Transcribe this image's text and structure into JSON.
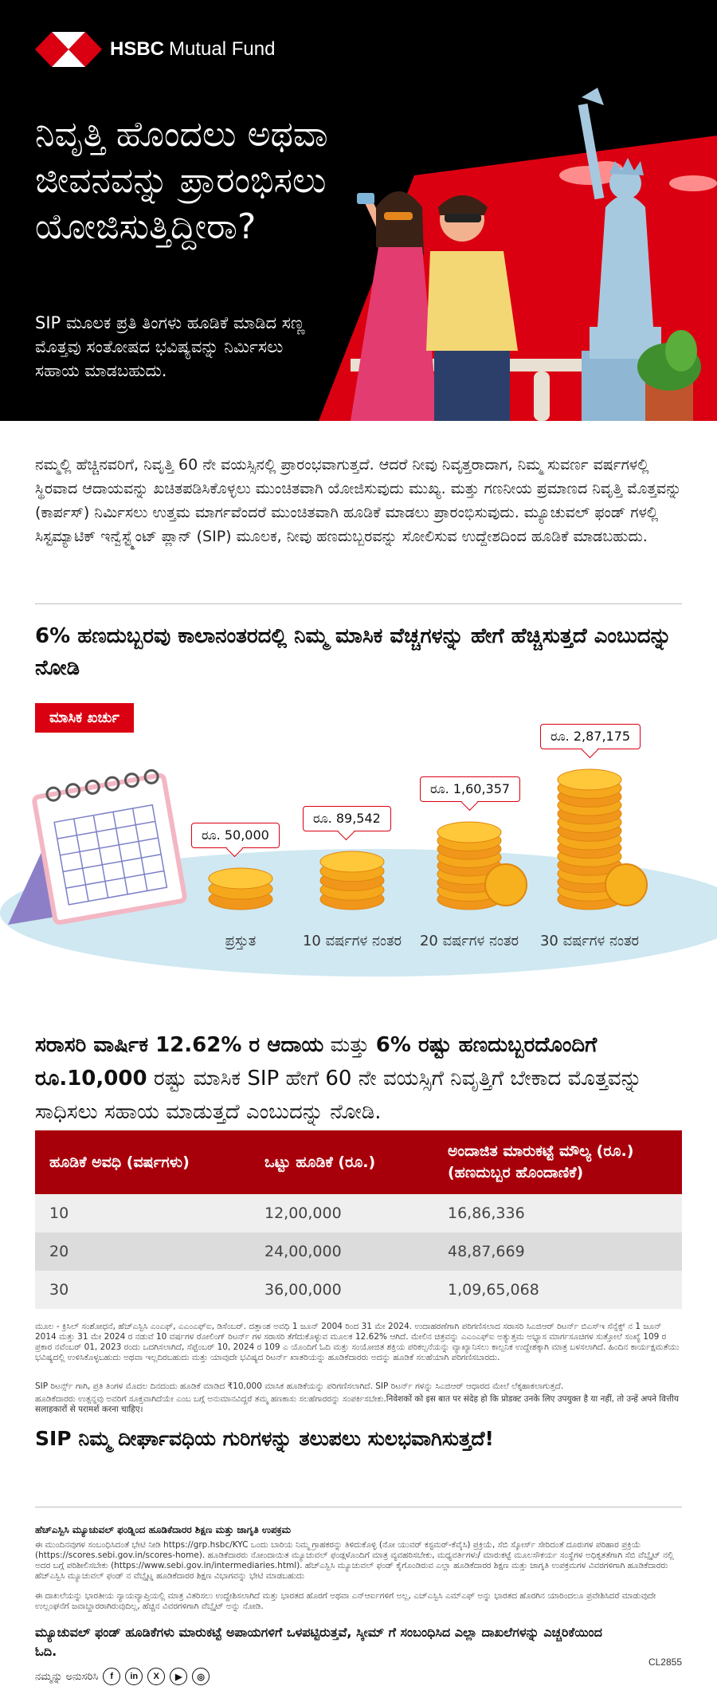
{
  "brand": {
    "name_bold": "HSBC",
    "name_rest": "Mutual Fund"
  },
  "colors": {
    "brand_red": "#db0011",
    "dark_red": "#a8000b",
    "hero_bg": "#000000"
  },
  "hero": {
    "title": "ನಿವೃತ್ತಿ ಹೊಂದಲು ಅಥವಾ ಜೀವನವನ್ನು ಪ್ರಾರಂಭಿಸಲು ಯೋಜಿಸುತ್ತಿದ್ದೀರಾ?",
    "subtitle": "SIP ಮೂಲಕ ಪ್ರತಿ ತಿಂಗಳು ಹೂಡಿಕೆ ಮಾಡಿದ ಸಣ್ಣ ಮೊತ್ತವು ಸಂತೋಷದ ಭವಿಷ್ಯವನ್ನು ನಿರ್ಮಿಸಲು ಸಹಾಯ ಮಾಡಬಹುದು."
  },
  "intro": "ನಮ್ಮಲ್ಲಿ ಹೆಚ್ಚಿನವರಿಗೆ, ನಿವೃತ್ತಿ 60 ನೇ ವಯಸ್ಸಿನಲ್ಲಿ ಪ್ರಾರಂಭವಾಗುತ್ತದೆ. ಆದರೆ ನೀವು ನಿವೃತ್ತರಾದಾಗ, ನಿಮ್ಮ ಸುವರ್ಣ ವರ್ಷಗಳಲ್ಲಿ ಸ್ಥಿರವಾದ ಆದಾಯವನ್ನು ಖಚಿತಪಡಿಸಿಕೊಳ್ಳಲು ಮುಂಚಿತವಾಗಿ ಯೋಜಿಸುವುದು ಮುಖ್ಯ. ಮತ್ತು ಗಣನೀಯ ಪ್ರಮಾಣದ ನಿವೃತ್ತಿ ಮೊತ್ತವನ್ನು (ಕಾರ್ಪಸ್) ನಿರ್ಮಿಸಲು ಉತ್ತಮ ಮಾರ್ಗವೆಂದರೆ ಮುಂಚಿತವಾಗಿ ಹೂಡಿಕೆ ಮಾಡಲು ಪ್ರಾರಂಭಿಸುವುದು. ಮ್ಯೂಚುವಲ್ ಫಂಡ್ ಗಳಲ್ಲಿ ಸಿಸ್ಟಮ್ಯಾಟಿಕ್ ಇನ್ವೆಸ್ಟ್ಮೆಂಟ್ ಪ್ಲಾನ್ (SIP) ಮೂಲಕ, ನೀವು ಹಣದುಬ್ಬರವನ್ನು ಸೋಲಿಸುವ ಉದ್ದೇಶದಿಂದ ಹೂಡಿಕೆ ಮಾಡಬಹುದು.",
  "inflation": {
    "title": "6% ಹಣದುಬ್ಬರವು ಕಾಲಾನಂತರದಲ್ಲಿ ನಿಮ್ಮ ಮಾಸಿಕ ವೆಚ್ಚಗಳನ್ನು ಹೇಗೆ ಹೆಚ್ಚಿಸುತ್ತದೆ ಎಂಬುದನ್ನು ನೋಡಿ",
    "badge": "ಮಾಸಿಕ ಖರ್ಚು"
  },
  "chart_data": {
    "type": "bar",
    "categories": [
      "ಪ್ರಸ್ತುತ",
      "10 ವರ್ಷಗಳ ನಂತರ",
      "20 ವರ್ಷಗಳ ನಂತರ",
      "30 ವರ್ಷಗಳ ನಂತರ"
    ],
    "values": [
      50000,
      89542,
      160357,
      287175
    ],
    "value_labels": [
      "ರೂ. 50,000",
      "ರೂ. 89,542",
      "ರೂ. 1,60,357",
      "ರೂ. 2,87,175"
    ],
    "series": [
      {
        "values": [
          50000,
          89542,
          160357,
          287175
        ]
      }
    ]
  },
  "lead": {
    "part1": "ಸರಾಸರಿ ವಾರ್ಷಿಕ 12.62% ರ ಆದಾಯ",
    "part2": " ಮತ್ತು ",
    "part3": "6% ರಷ್ಟು ಹಣದುಬ್ಬರದೊಂದಿಗೆ ರೂ.10,000",
    "part4": " ರಷ್ಟು ಮಾಸಿಕ SIP ಹೇಗೆ 60 ನೇ ವಯಸ್ಸಿಗೆ ನಿವೃತ್ತಿಗೆ ಬೇಕಾದ ಮೊತ್ತವನ್ನು ಸಾಧಿಸಲು ಸಹಾಯ ಮಾಡುತ್ತದೆ ಎಂಬುದನ್ನು ನೋಡಿ."
  },
  "table": {
    "headers": [
      "ಹೂಡಿಕೆ ಅವಧಿ (ವರ್ಷಗಳು)",
      "ಒಟ್ಟು ಹೂಡಿಕೆ (ರೂ.)",
      "ಅಂದಾಜಿತ ಮಾರುಕಟ್ಟೆ ಮೌಲ್ಯ (ರೂ.) (ಹಣದುಬ್ಬರ ಹೊಂದಾಣಿಕೆ)"
    ],
    "rows": [
      [
        "10",
        "12,00,000",
        "16,86,336"
      ],
      [
        "20",
        "24,00,000",
        "48,87,669"
      ],
      [
        "30",
        "36,00,000",
        "1,09,65,068"
      ]
    ]
  },
  "notes": {
    "source": "ಮೂಲ - ಕ್ರಿಸಿಲ್ ಸಂಶೋಧನೆ, ಹೆಚ್ಎಸ್ಬಿಸಿ ಎಂಎಫ್, ಎಎಂಎಫ್ಐ, ಡಿಸೆಂಬರ್. ದತ್ತಾಂಶ ಅವಧಿ 1 ಜೂನ್ 2004 ರಿಂದ 31 ಮೇ 2024. ಉದಾಹರಣೆಗಾಗಿ ಪರಿಗಣಿಸಲಾದ ಸರಾಸರಿ ಸಿಎಜಿಆರ್ ರಿಟರ್ನ್ ಬಿಎಸ್ಇ ಸೆನ್ಸೆಕ್ಸ್ ನ 1 ಜೂನ್ 2014 ಮತ್ತು 31 ಮೇ 2024 ರ ನಡುವೆ 10 ವರ್ಷಗಳ ರೋಲಿಂಗ್ ರಿಟರ್ನ್ ಗಳ ಸರಾಸರಿ ತೆಗೆದುಕೊಳ್ಳುವ ಮೂಲಕ 12.62% ಆಗಿದೆ. ಮೇಲಿನ ಚಿತ್ರವನ್ನು ಎಎಂಎಫ್ಐ ಅತ್ಯುತ್ತಮ ಅಭ್ಯಾಸ ಮಾರ್ಗಸೂಚಿಗಳ ಸುತ್ತೋಲೆ ಸಂಖ್ಯೆ 109 ರ ಪ್ರಕಾರ ನವೆಂಬರ್ 01, 2023 ರಂದು ಒದಗಿಸಲಾಗಿದೆ, ಸೆಪ್ಟೆಂಬರ್ 10, 2024 ರ 109 ಎ ಯೊಂದಿಗೆ ಓದಿ ಮತ್ತು ಸಂಯೋಜಿತ ಶಕ್ತಿಯ ಪರಿಕಲ್ಪನೆಯನ್ನು ವ್ಯಾಖ್ಯಾನಿಸಲು ಕಾಲ್ಪನಿಕ ಉದ್ದೇಶಕ್ಕಾಗಿ ಮಾತ್ರ ಬಳಸಲಾಗಿದೆ. ಹಿಂದಿನ ಕಾರ್ಯಕ್ಷಮತೆಯು ಭವಿಷ್ಯದಲ್ಲಿ ಉಳಿಸಿಕೊಳ್ಳಬಹುದು ಅಥವಾ ಇಲ್ಲದಿರಬಹುದು ಮತ್ತು ಯಾವುದೇ ಭವಿಷ್ಯದ ರಿಟರ್ನ್ ಖಾತರಿಯನ್ನು ಹೂಡಿಕೆದಾರರು ಅದನ್ನು ಹೂಡಿಕೆ ಸಲಹೆಯಾಗಿ ಪರಿಗಣಿಸಬಾರದು.",
    "sip": "SIP ರಿಟರ್ನ್ಸ್ ಗಾಗಿ, ಪ್ರತಿ ತಿಂಗಳ ಮೊದಲ ದಿನದಂದು ಹೂಡಿಕೆ ಮಾಡಿದ ₹10,000 ಮಾಸಿಕ ಹೂಡಿಕೆಯನ್ನು ಪರಿಗಣಿಸಲಾಗಿದೆ. SIP ರಿಟರ್ನ್ ಗಳನ್ನು ಸಿಎಜಿಆರ್ ಆಧಾರದ ಮೇಲೆ ಲೆಕ್ಕಹಾಕಲಾಗುತ್ತದೆ.",
    "advice": "ಹೂಡಿಕೆದಾರರು ಉತ್ಪನ್ನವು ಅವರಿಗೆ ಸೂಕ್ತವಾಗಿದೆಯೇ ಎಂಬ ಬಗ್ಗೆ ಅನುಮಾನವಿದ್ದರೆ ತಮ್ಮ ಹಣಕಾಸು ಸಲಹೆಗಾರರನ್ನು ಸಂಪರ್ಕಿಸಬೇಕು.निवेशकों को इस बात पर संदेह हो कि प्रोडक्ट उनके लिए उपयुक्त है या नहीं, तो उन्हें अपने वित्तीय सलाहकारों से परामर्श करना चाहिए।"
  },
  "tagline": "SIP ನಿಮ್ಮ ದೀರ್ಘಾವಧಿಯ ಗುರಿಗಳನ್ನು ತಲುಪಲು ಸುಲಭವಾಗಿಸುತ್ತದೆ!",
  "footer": {
    "title": "ಹೆಚ್ಎಸ್ಬಿಸಿ ಮ್ಯೂಚುವಲ್ ಫಂಡ್ನಿಂದ ಹೂಡಿಕೆದಾರರ ಶಿಕ್ಷಣ ಮತ್ತು ಜಾಗೃತಿ ಉಪಕ್ರಮ",
    "p1": "ಈ ಮುಂದಿನವುಗಳ ಸಂಬಂಧಿಸಿದಂತೆ ಭೇಟಿ ನೀಡಿ https://grp.hsbc/KYC ಒಂದು ಬಾರಿಯ ನಿಮ್ಮ ಗ್ರಾಹಕರನ್ನು ತಿಳಿದುಕೊಳ್ಳಿ (ನೋ ಯುವರ್ ಕಸ್ಟಮರ್-ಕೆವೈಸಿ) ಪ್ರಕ್ರಿಯೆ, ಸೆಬಿ ಸ್ಕೋರ್ಸ್ ಸೇರಿದಂತೆ ದೂರುಗಳ ಪರಿಹಾರ ಪ್ರಕ್ರಿಯೆ (https://scores.sebi.gov.in/scores-home). ಹೂಡಿಕೆದಾರರು ನೋಂದಾಯಿತ ಮ್ಯೂಚುವಲ್ ಫಂಡ್ಗಳೊಂದಿಗೆ ಮಾತ್ರ ವ್ಯವಹರಿಸಬೇಕು, ಮಧ್ಯವರ್ತಿಗಳು/ ಮಾರುಕಟ್ಟೆ ಮೂಲಸೌಕರ್ಯ ಸಂಸ್ಥೆಗಳ ಅಧಿಕೃತತೆಗಾಗಿ ಸೆಬಿ ವೆಬ್ಸೈಟ್ ನಲ್ಲಿ ಅದರ ಬಗ್ಗೆ ಪರಿಶೀಲಿಸಬೇಕು (https://www.sebi.gov.in/intermediaries.html). ಹೆಚ್ಎಸ್ಬಿಸಿ ಮ್ಯೂಚುವಲ್ ಫಂಡ್ ಕೈಗೊಂಡಿರುವ ಎಲ್ಲಾ ಹೂಡಿಕೆದಾರರ ಶಿಕ್ಷಣ ಮತ್ತು ಜಾಗೃತಿ ಉಪಕ್ರಮಗಳ ವಿವರಗಳಿಗಾಗಿ ಹೂಡಿಕೆದಾರರು ಹೆಚ್ಎಸ್ಬಿಸಿ ಮ್ಯೂಚುವಲ್ ಫಂಡ್ ನ ವೆಬ್ಸೈಟ್ನ ಹೂಡಿಕೆದಾರರ ಶಿಕ್ಷಣ ವಿಭಾಗವನ್ನು ಭೇಟಿ ಮಾಡಬಹುದು",
    "p2": "ಈ ದಾಖಲೆಯನ್ನು ಭಾರತೀಯ ನ್ಯಾಯವ್ಯಾಪ್ತಿಯಲ್ಲಿ ಮಾತ್ರ ವಿತರಿಸಲು ಉದ್ದೇಶಿಸಲಾಗಿದೆ ಮತ್ತು ಭಾರತದ ಹೊರಗೆ ಅಥವಾ ಎನ್ಆರ್ಐಗಳಿಗೆ ಅಲ್ಲ, ಎಚ್ಎಸ್ಬಿಸಿ ಎಮ್ಎಫ್ ಅನ್ನು ಭಾರತದ ಹೊರಗಿನ ಯಾರಿಂದಲೂ ಪ್ರವೇಶಿಸಿದರೆ ಮಾಡುವುದೇ ಉಲ್ಲಂಘನೆಗೆ ಜವಾಬ್ದಾರರಾಗಿರುವುದಿಲ್ಲ, ಹೆಚ್ಚಿನ ವಿವರಗಳಿಗಾಗಿ ವೆಬ್ಸೈಟ್ ಅನ್ನು ನೋಡಿ.",
    "warning": "ಮ್ಯೂಚುವಲ್ ಫಂಡ್ ಹೂಡಿಕೆಗಳು ಮಾರುಕಟ್ಟೆ ಅಪಾಯಗಳಿಗೆ ಒಳಪಟ್ಟಿರುತ್ತವೆ, ಸ್ಕೀಮ್ ಗೆ ಸಂಬಂಧಿಸಿದ ಎಲ್ಲಾ ದಾಖಲೆಗಳನ್ನು ಎಚ್ಚರಿಕೆಯಿಂದ ಓದಿ.",
    "code": "CL2855",
    "follow": "ನಮ್ಮನ್ನು ಅನುಸರಿಸಿ",
    "social": [
      "f",
      "in",
      "X",
      "▶",
      "◎"
    ]
  }
}
